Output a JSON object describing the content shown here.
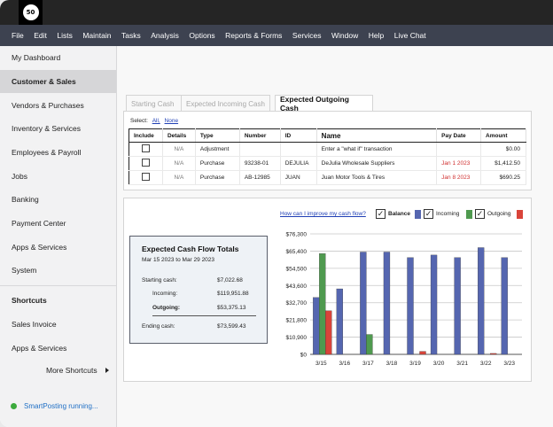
{
  "app": {
    "logo_text": "50"
  },
  "menu": [
    "File",
    "Edit",
    "Lists",
    "Maintain",
    "Tasks",
    "Analysis",
    "Options",
    "Reports & Forms",
    "Services",
    "Window",
    "Help",
    "Live Chat"
  ],
  "sidebar": {
    "items": [
      {
        "label": "My Dashboard",
        "active": false
      },
      {
        "label": "Customer & Sales",
        "active": true
      },
      {
        "label": "Vendors & Purchases",
        "active": false
      },
      {
        "label": "Inventory & Services",
        "active": false
      },
      {
        "label": "Employees & Payroll",
        "active": false
      },
      {
        "label": "Jobs",
        "active": false
      },
      {
        "label": "Banking",
        "active": false
      },
      {
        "label": "Payment Center",
        "active": false
      },
      {
        "label": "Apps & Services",
        "active": false
      },
      {
        "label": "System",
        "active": false
      }
    ],
    "shortcuts_heading": "Shortcuts",
    "shortcuts": [
      "Sales Invoice",
      "Apps & Services"
    ],
    "more_shortcuts": "More Shortcuts",
    "status": "SmartPosting running..."
  },
  "tabs": [
    {
      "label": "Starting Cash",
      "active": false
    },
    {
      "label": "Expected Incoming Cash",
      "active": false
    },
    {
      "label": "Expected Outgoing Cash",
      "active": true
    }
  ],
  "select": {
    "label": "Select:",
    "all": "All,",
    "none": "None"
  },
  "table": {
    "headers": [
      "Include",
      "Details",
      "Type",
      "Number",
      "ID",
      "Name",
      "Pay Date",
      "Amount"
    ],
    "rows": [
      {
        "details": "N/A",
        "type": "Adjustment",
        "number": "",
        "id": "",
        "name": "Enter a \"what if\" transaction",
        "pay_date": "",
        "amount": "$0.00"
      },
      {
        "details": "N/A",
        "type": "Purchase",
        "number": "93238-01",
        "id": "DEJULIA",
        "name": "DeJulia Wholesale Suppliers",
        "pay_date": "Jan 1 2023",
        "amount": "$1,412.50"
      },
      {
        "details": "N/A",
        "type": "Purchase",
        "number": "AB-12985",
        "id": "JUAN",
        "name": "Juan Motor Tools & Tires",
        "pay_date": "Jan 8 2023",
        "amount": "$690.25"
      }
    ]
  },
  "chart_panel": {
    "help_link": "How can I improve my cash flow?",
    "legend": [
      {
        "label": "Balance",
        "color": "#5566b0",
        "checked": true
      },
      {
        "label": "Incoming",
        "color": "#4f9a4f",
        "checked": true
      },
      {
        "label": "Outgoing",
        "color": "#d9443a",
        "checked": true
      }
    ],
    "check_mark": "✓"
  },
  "totals": {
    "title": "Expected Cash Flow Totals",
    "range": "Mar 15 2023 to Mar 29 2023",
    "starting_label": "Starting cash:",
    "starting_value": "$7,022.68",
    "incoming_label": "Incoming:",
    "incoming_value": "$119,951.88",
    "outgoing_label": "Outgoing:",
    "outgoing_value": "$53,375.13",
    "ending_label": "Ending cash:",
    "ending_value": "$73,599.43"
  },
  "chart_data": {
    "type": "bar",
    "categories": [
      "3/15",
      "3/16",
      "3/17",
      "3/18",
      "3/19",
      "3/20",
      "3/21",
      "3/22",
      "3/23"
    ],
    "y_ticks": [
      "$0",
      "$10,900",
      "$21,800",
      "$32,700",
      "$43,600",
      "$54,500",
      "$65,400",
      "$76,300"
    ],
    "ylim": [
      0,
      76300
    ],
    "grid": true,
    "series": [
      {
        "name": "Balance",
        "color": "#5566b0",
        "values": [
          36000,
          41500,
          64800,
          64800,
          61300,
          62900,
          61300,
          67600,
          61300
        ]
      },
      {
        "name": "Incoming",
        "color": "#4f9a4f",
        "values": [
          63800,
          0,
          12600,
          0,
          0,
          0,
          0,
          0,
          0
        ]
      },
      {
        "name": "Outgoing",
        "color": "#d9443a",
        "values": [
          27600,
          0,
          0,
          0,
          1900,
          0,
          0,
          600,
          0
        ]
      }
    ]
  }
}
